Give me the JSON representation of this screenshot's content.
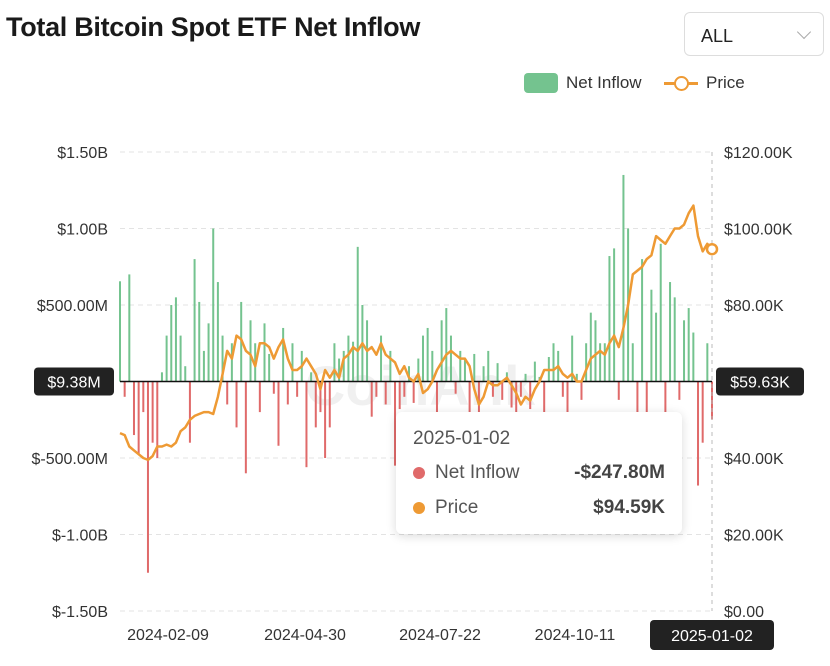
{
  "title": "Total Bitcoin Spot ETF Net Inflow",
  "range_select": {
    "value": "ALL",
    "icon": "chevron-down-icon"
  },
  "legend": {
    "net_inflow": "Net Inflow",
    "price": "Price"
  },
  "colors": {
    "positive": "#74c38f",
    "negative": "#e06a6a",
    "price": "#ee9a34",
    "axis_badge": "#222222"
  },
  "crosshair": {
    "left_label": "$9.38M",
    "right_label": "$59.63K",
    "x_label": "2025-01-02"
  },
  "tooltip": {
    "date": "2025-01-02",
    "rows": [
      {
        "label": "Net Inflow",
        "value": "-$247.80M",
        "color": "#e06a6a"
      },
      {
        "label": "Price",
        "value": "$94.59K",
        "color": "#ee9a34"
      }
    ]
  },
  "watermark": "CoinAnk",
  "chart_data": {
    "type": "bar+line",
    "title": "Total Bitcoin Spot ETF Net Inflow",
    "x_tick_labels": [
      "2024-02-09",
      "2024-04-30",
      "2024-07-22",
      "2024-10-11",
      "2025-01-02"
    ],
    "y_left": {
      "unit": "USD millions",
      "ylim": [
        -1500,
        1500
      ],
      "tick_labels": [
        "$1.50B",
        "$1.00B",
        "$500.00M",
        "$0",
        "$-500.00M",
        "$-1.00B",
        "$-1.50B"
      ],
      "tick_values": [
        1500,
        1000,
        500,
        0,
        -500,
        -1000,
        -1500
      ]
    },
    "y_right": {
      "unit": "USD thousands",
      "ylim": [
        0,
        120
      ],
      "tick_labels": [
        "$120.00K",
        "$100.00K",
        "$80.00K",
        "$60.00K",
        "$40.00K",
        "$20.00K",
        "$0.00"
      ],
      "tick_values": [
        120,
        100,
        80,
        60,
        40,
        20,
        0
      ]
    },
    "grid": true,
    "legend_position": "top-right",
    "series": [
      {
        "name": "Net Inflow",
        "type": "bar",
        "axis": "left",
        "values": [
          655,
          -100,
          700,
          -350,
          -480,
          -200,
          -1250,
          -400,
          -500,
          60,
          300,
          500,
          550,
          300,
          100,
          -400,
          800,
          520,
          200,
          380,
          1000,
          650,
          300,
          -150,
          250,
          -300,
          520,
          -600,
          400,
          250,
          -200,
          380,
          180,
          -80,
          -420,
          350,
          -150,
          250,
          -100,
          200,
          -560,
          60,
          -300,
          -200,
          -500,
          -300,
          250,
          150,
          200,
          300,
          260,
          880,
          500,
          400,
          -230,
          -100,
          300,
          -150,
          200,
          -550,
          -180,
          -100,
          100,
          -140,
          150,
          300,
          350,
          200,
          -300,
          400,
          480,
          300,
          -80,
          200,
          150,
          -250,
          180,
          -200,
          100,
          200,
          -100,
          120,
          -120,
          60,
          -170,
          -290,
          -100,
          50,
          -180,
          130,
          30,
          -210,
          160,
          250,
          200,
          -100,
          -240,
          300,
          50,
          -120,
          250,
          450,
          400,
          250,
          250,
          820,
          870,
          -120,
          1350,
          1000,
          250,
          -250,
          800,
          -350,
          600,
          450,
          900,
          -400,
          650,
          550,
          -120,
          400,
          480,
          320,
          -680,
          -400,
          250,
          -247.8
        ]
      },
      {
        "name": "Price",
        "type": "line",
        "axis": "right",
        "values": [
          46.5,
          46,
          43,
          42,
          41,
          40,
          39.5,
          40.5,
          43,
          43,
          43.5,
          43,
          44,
          47,
          48,
          50,
          51,
          51.5,
          52,
          52,
          51.5,
          56,
          62,
          68,
          66,
          72,
          71,
          68,
          67,
          64,
          70,
          70,
          69,
          66,
          69,
          71,
          66,
          63,
          63,
          64,
          66,
          64,
          62,
          58,
          63,
          61,
          63,
          61,
          66,
          67,
          69,
          68,
          70,
          68,
          69,
          67,
          70,
          67,
          66,
          65,
          62,
          64,
          61,
          60,
          62,
          57,
          58,
          60,
          63,
          65,
          67,
          68,
          67,
          66,
          66,
          64,
          58,
          54,
          56,
          60,
          59,
          59,
          60,
          61,
          59,
          57,
          54,
          56,
          55,
          58,
          60,
          63,
          63,
          63,
          64,
          62,
          61,
          62,
          60,
          60,
          63,
          66,
          67,
          68,
          67,
          70,
          72,
          69,
          74,
          80,
          88,
          89,
          90,
          92,
          93,
          98,
          97,
          96,
          98,
          100,
          100,
          101,
          104,
          106,
          98,
          94,
          96,
          94.59
        ]
      }
    ]
  }
}
